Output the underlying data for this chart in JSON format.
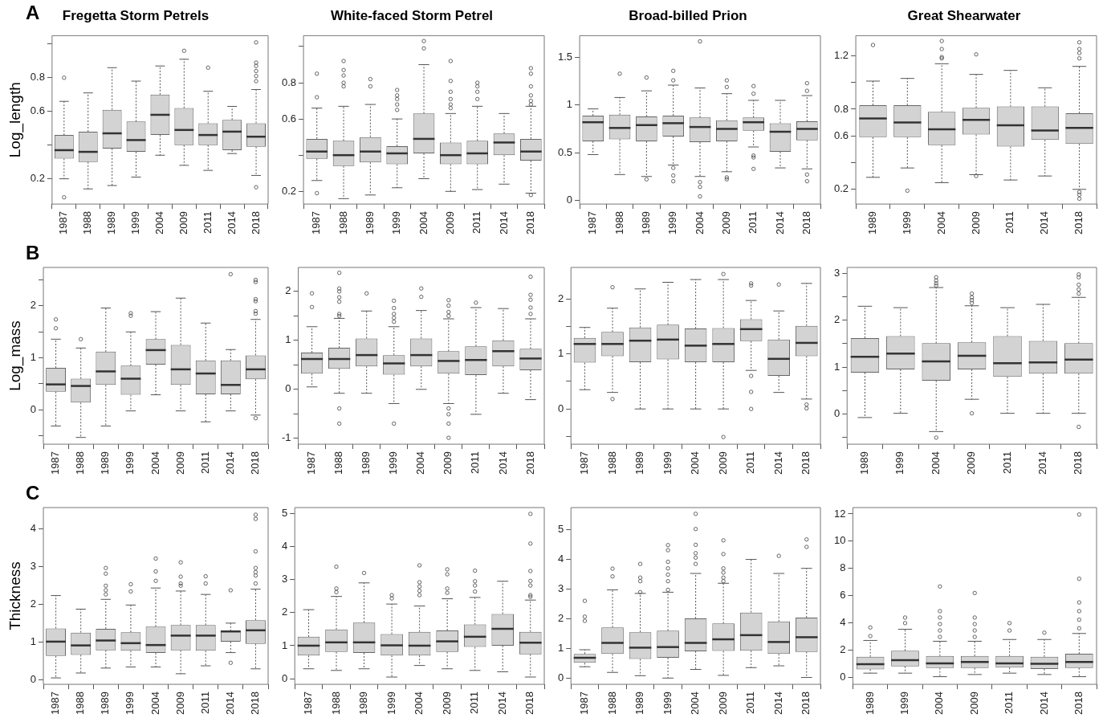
{
  "chart_data": [
    {
      "type": "box",
      "title": "Fregetta Storm Petrels",
      "ylabel": "Log_length",
      "annotations": [
        "A"
      ],
      "grid": false,
      "ylim": [
        0.05,
        1.05
      ],
      "yticks": [
        0.2,
        {
          "value": 0.4,
          "label": null
        },
        0.6,
        0.8,
        {
          "value": 1.0,
          "label": null
        }
      ],
      "categories": [
        "1987",
        "1988",
        "1989",
        "1999",
        "2004",
        "2009",
        "2011",
        "2014",
        "2018"
      ],
      "boxes": [
        {
          "low": 0.2,
          "q1": 0.32,
          "median": 0.37,
          "q3": 0.46,
          "high": 0.66,
          "outliers": [
            0.8,
            0.09
          ]
        },
        {
          "low": 0.14,
          "q1": 0.3,
          "median": 0.36,
          "q3": 0.48,
          "high": 0.71
        },
        {
          "low": 0.16,
          "q1": 0.38,
          "median": 0.47,
          "q3": 0.61,
          "high": 0.86
        },
        {
          "low": 0.21,
          "q1": 0.36,
          "median": 0.43,
          "q3": 0.54,
          "high": 0.78
        },
        {
          "low": 0.34,
          "q1": 0.46,
          "median": 0.58,
          "q3": 0.7,
          "high": 0.87
        },
        {
          "low": 0.28,
          "q1": 0.4,
          "median": 0.49,
          "q3": 0.62,
          "high": 0.91,
          "outliers": [
            0.96
          ]
        },
        {
          "low": 0.25,
          "q1": 0.4,
          "median": 0.46,
          "q3": 0.53,
          "high": 0.72,
          "outliers": [
            0.86
          ]
        },
        {
          "low": 0.35,
          "q1": 0.37,
          "median": 0.48,
          "q3": 0.55,
          "high": 0.63
        },
        {
          "low": 0.22,
          "q1": 0.39,
          "median": 0.45,
          "q3": 0.53,
          "high": 0.73,
          "outliers": [
            1.01,
            0.89,
            0.87,
            0.84,
            0.81,
            0.78,
            0.15
          ]
        }
      ]
    },
    {
      "type": "box",
      "title": "White-faced Storm Petrel",
      "grid": false,
      "ylim": [
        0.13,
        1.06
      ],
      "yticks": [
        0.2,
        {
          "value": 0.4,
          "label": null
        },
        0.6,
        0.8,
        {
          "value": 1.0,
          "label": null
        }
      ],
      "categories": [
        "1987",
        "1988",
        "1989",
        "1999",
        "2004",
        "2009",
        "2011",
        "2014",
        "2018"
      ],
      "boxes": [
        {
          "low": 0.26,
          "q1": 0.38,
          "median": 0.42,
          "q3": 0.49,
          "high": 0.66,
          "outliers": [
            0.85,
            0.72,
            0.19
          ]
        },
        {
          "low": 0.16,
          "q1": 0.34,
          "median": 0.4,
          "q3": 0.48,
          "high": 0.67,
          "outliers": [
            0.92,
            0.87,
            0.84,
            0.8,
            0.78
          ]
        },
        {
          "low": 0.18,
          "q1": 0.36,
          "median": 0.42,
          "q3": 0.5,
          "high": 0.68,
          "outliers": [
            0.82,
            0.78
          ]
        },
        {
          "low": 0.22,
          "q1": 0.35,
          "median": 0.41,
          "q3": 0.45,
          "high": 0.6,
          "outliers": [
            0.76,
            0.73,
            0.71,
            0.68,
            0.65
          ]
        },
        {
          "low": 0.27,
          "q1": 0.41,
          "median": 0.49,
          "q3": 0.63,
          "high": 0.9,
          "outliers": [
            1.03,
            0.99
          ]
        },
        {
          "low": 0.2,
          "q1": 0.35,
          "median": 0.4,
          "q3": 0.47,
          "high": 0.63,
          "outliers": [
            0.92,
            0.81,
            0.75,
            0.71,
            0.68,
            0.66
          ]
        },
        {
          "low": 0.21,
          "q1": 0.35,
          "median": 0.41,
          "q3": 0.48,
          "high": 0.67,
          "outliers": [
            0.8,
            0.78,
            0.75,
            0.71
          ]
        },
        {
          "low": 0.24,
          "q1": 0.4,
          "median": 0.47,
          "q3": 0.52,
          "high": 0.63
        },
        {
          "low": 0.19,
          "q1": 0.37,
          "median": 0.42,
          "q3": 0.49,
          "high": 0.67,
          "outliers": [
            0.88,
            0.85,
            0.78,
            0.73,
            0.7,
            0.68,
            0.18
          ]
        }
      ]
    },
    {
      "type": "box",
      "title": "Broad-billed Prion",
      "grid": false,
      "ylim": [
        -0.04,
        1.73
      ],
      "yticks": [
        0,
        0.5,
        1,
        1.5
      ],
      "categories": [
        "1987",
        "1988",
        "1989",
        "1999",
        "2004",
        "2009",
        "2011",
        "2014",
        "2018"
      ],
      "boxes": [
        {
          "low": 0.48,
          "q1": 0.62,
          "median": 0.82,
          "q3": 0.89,
          "high": 0.96
        },
        {
          "low": 0.27,
          "q1": 0.64,
          "median": 0.76,
          "q3": 0.9,
          "high": 1.08,
          "outliers": [
            1.33
          ]
        },
        {
          "low": 0.25,
          "q1": 0.62,
          "median": 0.79,
          "q3": 0.88,
          "high": 1.15,
          "outliers": [
            1.29,
            0.22
          ]
        },
        {
          "low": 0.37,
          "q1": 0.67,
          "median": 0.81,
          "q3": 0.89,
          "high": 1.21,
          "outliers": [
            1.36,
            1.26,
            0.34,
            0.26,
            0.2
          ]
        },
        {
          "low": 0.25,
          "q1": 0.61,
          "median": 0.77,
          "q3": 0.87,
          "high": 1.18,
          "outliers": [
            1.67,
            0.19,
            0.14,
            0.04
          ]
        },
        {
          "low": 0.3,
          "q1": 0.62,
          "median": 0.75,
          "q3": 0.84,
          "high": 1.12,
          "outliers": [
            1.26,
            1.19,
            0.24,
            0.22
          ]
        },
        {
          "low": 0.56,
          "q1": 0.73,
          "median": 0.82,
          "q3": 0.87,
          "high": 1.05,
          "outliers": [
            1.2,
            1.12,
            0.47,
            0.45,
            0.33
          ]
        },
        {
          "low": 0.34,
          "q1": 0.51,
          "median": 0.72,
          "q3": 0.81,
          "high": 1.05
        },
        {
          "low": 0.33,
          "q1": 0.63,
          "median": 0.75,
          "q3": 0.83,
          "high": 1.1,
          "outliers": [
            1.23,
            1.15,
            0.27,
            0.2
          ]
        }
      ]
    },
    {
      "type": "box",
      "title": "Great Shearwater",
      "grid": false,
      "ylim": [
        0.09,
        1.35
      ],
      "yticks": [
        0.2,
        {
          "value": 0.4,
          "label": null
        },
        0.6,
        0.8,
        {
          "value": 1.0,
          "label": null
        },
        1.2
      ],
      "categories": [
        "1989",
        "1999",
        "2004",
        "2009",
        "2011",
        "2014",
        "2018"
      ],
      "boxes": [
        {
          "low": 0.29,
          "q1": 0.59,
          "median": 0.73,
          "q3": 0.83,
          "high": 1.01,
          "outliers": [
            1.28
          ]
        },
        {
          "low": 0.36,
          "q1": 0.59,
          "median": 0.7,
          "q3": 0.83,
          "high": 1.03,
          "outliers": [
            0.19
          ]
        },
        {
          "low": 0.25,
          "q1": 0.53,
          "median": 0.65,
          "q3": 0.78,
          "high": 1.14,
          "outliers": [
            1.31,
            1.25,
            1.19,
            1.18
          ]
        },
        {
          "low": 0.31,
          "q1": 0.61,
          "median": 0.72,
          "q3": 0.81,
          "high": 1.06,
          "outliers": [
            1.21,
            0.3
          ]
        },
        {
          "low": 0.27,
          "q1": 0.52,
          "median": 0.68,
          "q3": 0.82,
          "high": 1.09
        },
        {
          "low": 0.3,
          "q1": 0.57,
          "median": 0.64,
          "q3": 0.82,
          "high": 0.96
        },
        {
          "low": 0.2,
          "q1": 0.54,
          "median": 0.66,
          "q3": 0.77,
          "high": 1.12,
          "outliers": [
            1.3,
            1.25,
            1.22,
            1.18,
            0.18,
            0.16,
            0.13
          ]
        }
      ]
    },
    {
      "type": "box",
      "ylabel": "Log_mass",
      "annotations": [
        "B"
      ],
      "grid": false,
      "ylim": [
        -0.66,
        2.74
      ],
      "yticks": [
        {
          "value": -0.5,
          "label": null
        },
        0,
        {
          "value": 0.5,
          "label": null
        },
        1,
        {
          "value": 1.5,
          "label": null
        },
        2,
        {
          "value": 2.5,
          "label": null
        }
      ],
      "categories": [
        "1987",
        "1988",
        "1989",
        "1999",
        "2004",
        "2009",
        "2011",
        "2014",
        "2018"
      ],
      "boxes": [
        {
          "low": -0.31,
          "q1": 0.35,
          "median": 0.49,
          "q3": 0.81,
          "high": 1.36,
          "outliers": [
            1.74,
            1.57
          ]
        },
        {
          "low": -0.53,
          "q1": 0.14,
          "median": 0.46,
          "q3": 0.6,
          "high": 1.19,
          "outliers": [
            1.36
          ]
        },
        {
          "low": -0.31,
          "q1": 0.48,
          "median": 0.74,
          "q3": 1.12,
          "high": 1.96
        },
        {
          "low": -0.02,
          "q1": 0.29,
          "median": 0.6,
          "q3": 0.85,
          "high": 1.5,
          "outliers": [
            1.86,
            1.81
          ]
        },
        {
          "low": 0.29,
          "q1": 0.87,
          "median": 1.15,
          "q3": 1.36,
          "high": 1.89
        },
        {
          "low": -0.02,
          "q1": 0.48,
          "median": 0.78,
          "q3": 1.25,
          "high": 2.15
        },
        {
          "low": -0.23,
          "q1": 0.3,
          "median": 0.7,
          "q3": 0.95,
          "high": 1.67
        },
        {
          "low": -0.02,
          "q1": 0.3,
          "median": 0.48,
          "q3": 0.95,
          "high": 1.16,
          "outliers": [
            2.61
          ]
        },
        {
          "low": -0.1,
          "q1": 0.59,
          "median": 0.78,
          "q3": 1.05,
          "high": 1.74,
          "outliers": [
            2.5,
            2.46,
            2.13,
            2.09,
            1.9,
            1.85,
            -0.16
          ]
        }
      ]
    },
    {
      "type": "box",
      "grid": false,
      "ylim": [
        -1.12,
        2.49
      ],
      "yticks": [
        -1,
        {
          "value": -0.5,
          "label": null
        },
        0,
        {
          "value": 0.5,
          "label": null
        },
        1,
        {
          "value": 1.5,
          "label": null
        },
        2
      ],
      "categories": [
        "1987",
        "1988",
        "1989",
        "1999",
        "2004",
        "2009",
        "2011",
        "2014",
        "2018"
      ],
      "boxes": [
        {
          "low": 0.05,
          "q1": 0.32,
          "median": 0.62,
          "q3": 0.75,
          "high": 1.28,
          "outliers": [
            1.96,
            1.68
          ]
        },
        {
          "low": -0.08,
          "q1": 0.42,
          "median": 0.62,
          "q3": 0.85,
          "high": 1.45,
          "outliers": [
            2.38,
            2.06,
            2.0,
            1.88,
            1.79,
            1.54,
            1.5,
            -0.39,
            -0.7
          ]
        },
        {
          "low": -0.08,
          "q1": 0.47,
          "median": 0.7,
          "q3": 1.04,
          "high": 1.6,
          "outliers": [
            1.96
          ]
        },
        {
          "low": -0.29,
          "q1": 0.3,
          "median": 0.53,
          "q3": 0.7,
          "high": 1.28,
          "outliers": [
            1.81,
            1.66,
            1.54,
            1.46,
            1.38,
            -0.7
          ]
        },
        {
          "low": 0,
          "q1": 0.47,
          "median": 0.7,
          "q3": 1.04,
          "high": 1.61,
          "outliers": [
            2.06,
            1.89
          ]
        },
        {
          "low": -0.29,
          "q1": 0.32,
          "median": 0.58,
          "q3": 0.78,
          "high": 1.44,
          "outliers": [
            1.82,
            1.71,
            1.58,
            1.5,
            -0.39,
            -0.51,
            -0.7,
            -0.99
          ]
        },
        {
          "low": -0.51,
          "q1": 0.29,
          "median": 0.6,
          "q3": 0.88,
          "high": 1.67,
          "outliers": [
            1.77
          ]
        },
        {
          "low": -0.08,
          "q1": 0.47,
          "median": 0.78,
          "q3": 1.0,
          "high": 1.65
        },
        {
          "low": -0.21,
          "q1": 0.39,
          "median": 0.63,
          "q3": 0.83,
          "high": 1.44,
          "outliers": [
            2.3,
            1.93,
            1.83,
            1.67,
            1.54
          ]
        }
      ]
    },
    {
      "type": "box",
      "grid": false,
      "ylim": [
        -0.64,
        2.57
      ],
      "yticks": [
        {
          "value": -0.5,
          "label": null
        },
        0,
        {
          "value": 0.5,
          "label": null
        },
        1,
        {
          "value": 1.5,
          "label": null
        },
        2
      ],
      "categories": [
        "1987",
        "1988",
        "1989",
        "1999",
        "2004",
        "2009",
        "2011",
        "2014",
        "2018"
      ],
      "boxes": [
        {
          "low": 0.35,
          "q1": 0.84,
          "median": 1.18,
          "q3": 1.29,
          "high": 1.48
        },
        {
          "low": 0.3,
          "q1": 0.96,
          "median": 1.18,
          "q3": 1.4,
          "high": 1.83,
          "outliers": [
            2.21,
            0.18
          ]
        },
        {
          "low": 0,
          "q1": 0.85,
          "median": 1.24,
          "q3": 1.48,
          "high": 2.18
        },
        {
          "low": 0,
          "q1": 0.9,
          "median": 1.26,
          "q3": 1.53,
          "high": 2.3
        },
        {
          "low": 0,
          "q1": 0.85,
          "median": 1.15,
          "q3": 1.46,
          "high": 2.35
        },
        {
          "low": 0,
          "q1": 0.85,
          "median": 1.18,
          "q3": 1.47,
          "high": 2.35,
          "outliers": [
            2.45,
            -0.51
          ]
        },
        {
          "low": 0.7,
          "q1": 1.23,
          "median": 1.45,
          "q3": 1.63,
          "high": 1.97,
          "outliers": [
            2.28,
            2.24,
            0.6,
            0.31,
            0
          ]
        },
        {
          "low": 0.3,
          "q1": 0.6,
          "median": 0.91,
          "q3": 1.26,
          "high": 1.78,
          "outliers": [
            2.26
          ]
        },
        {
          "low": 0.18,
          "q1": 0.96,
          "median": 1.2,
          "q3": 1.51,
          "high": 2.28,
          "outliers": [
            0.08,
            0.01
          ]
        }
      ]
    },
    {
      "type": "box",
      "grid": false,
      "ylim": [
        -0.65,
        3.13
      ],
      "yticks": [
        {
          "value": -0.5,
          "label": null
        },
        0,
        {
          "value": 0.5,
          "label": null
        },
        1,
        {
          "value": 1.5,
          "label": null
        },
        2,
        {
          "value": 2.5,
          "label": null
        },
        3
      ],
      "categories": [
        "1989",
        "1999",
        "2004",
        "2009",
        "2011",
        "2014",
        "2018"
      ],
      "boxes": [
        {
          "low": -0.08,
          "q1": 0.88,
          "median": 1.22,
          "q3": 1.62,
          "high": 2.3
        },
        {
          "low": 0.01,
          "q1": 0.95,
          "median": 1.29,
          "q3": 1.66,
          "high": 2.27
        },
        {
          "low": -0.38,
          "q1": 0.71,
          "median": 1.12,
          "q3": 1.51,
          "high": 2.7,
          "outliers": [
            2.92,
            2.85,
            2.79,
            2.74,
            -0.51
          ]
        },
        {
          "low": 0.31,
          "q1": 0.95,
          "median": 1.24,
          "q3": 1.53,
          "high": 2.31,
          "outliers": [
            2.57,
            2.49,
            2.43,
            2.37,
            0.01
          ]
        },
        {
          "low": 0.01,
          "q1": 0.79,
          "median": 1.08,
          "q3": 1.66,
          "high": 2.27
        },
        {
          "low": 0.01,
          "q1": 0.86,
          "median": 1.1,
          "q3": 1.56,
          "high": 2.34
        },
        {
          "low": 0.01,
          "q1": 0.86,
          "median": 1.16,
          "q3": 1.51,
          "high": 2.49,
          "outliers": [
            2.98,
            2.92,
            2.76,
            2.66,
            2.57,
            -0.28
          ]
        }
      ]
    },
    {
      "type": "box",
      "ylabel": "Thickness",
      "annotations": [
        "C"
      ],
      "grid": false,
      "ylim": [
        -0.11,
        4.57
      ],
      "yticks": [
        0,
        1,
        2,
        3,
        4
      ],
      "categories": [
        "1987",
        "1988",
        "1989",
        "1999",
        "2004",
        "2009",
        "2011",
        "2014",
        "2018"
      ],
      "boxes": [
        {
          "low": 0.06,
          "q1": 0.64,
          "median": 1.02,
          "q3": 1.37,
          "high": 2.24
        },
        {
          "low": 0.19,
          "q1": 0.67,
          "median": 0.92,
          "q3": 1.26,
          "high": 1.88
        },
        {
          "low": 0.32,
          "q1": 0.79,
          "median": 1.05,
          "q3": 1.36,
          "high": 2.14,
          "outliers": [
            2.97,
            2.82,
            2.5,
            2.38,
            2.27
          ]
        },
        {
          "low": 0.35,
          "q1": 0.78,
          "median": 0.98,
          "q3": 1.27,
          "high": 1.99,
          "outliers": [
            2.54,
            2.35
          ]
        },
        {
          "low": 0.35,
          "q1": 0.72,
          "median": 0.93,
          "q3": 1.42,
          "high": 2.44,
          "outliers": [
            3.22,
            2.88,
            2.63
          ]
        },
        {
          "low": 0.17,
          "q1": 0.79,
          "median": 1.18,
          "q3": 1.46,
          "high": 2.36,
          "outliers": [
            3.12,
            2.74,
            2.56,
            2.5
          ]
        },
        {
          "low": 0.38,
          "q1": 0.78,
          "median": 1.18,
          "q3": 1.46,
          "high": 2.27,
          "outliers": [
            2.75,
            2.56
          ]
        },
        {
          "low": 0.73,
          "q1": 1.02,
          "median": 1.29,
          "q3": 1.3,
          "high": 1.51,
          "outliers": [
            2.38,
            0.46
          ]
        },
        {
          "low": 0.3,
          "q1": 0.96,
          "median": 1.32,
          "q3": 1.59,
          "high": 2.41,
          "outliers": [
            4.38,
            4.27,
            3.41,
            2.97,
            2.86,
            2.77,
            2.56
          ]
        }
      ]
    },
    {
      "type": "box",
      "grid": false,
      "ylim": [
        -0.17,
        5.18
      ],
      "yticks": [
        0,
        1,
        2,
        3,
        4,
        5
      ],
      "categories": [
        "1987",
        "1988",
        "1989",
        "1999",
        "2004",
        "2009",
        "2011",
        "2014",
        "2018"
      ],
      "boxes": [
        {
          "low": 0.3,
          "q1": 0.7,
          "median": 1.0,
          "q3": 1.27,
          "high": 2.09
        },
        {
          "low": 0.25,
          "q1": 0.81,
          "median": 1.1,
          "q3": 1.49,
          "high": 2.49,
          "outliers": [
            3.39,
            2.73,
            2.62
          ]
        },
        {
          "low": 0.3,
          "q1": 0.78,
          "median": 1.1,
          "q3": 1.7,
          "high": 2.9,
          "outliers": [
            3.2
          ]
        },
        {
          "low": 0.05,
          "q1": 0.7,
          "median": 1.01,
          "q3": 1.35,
          "high": 2.26,
          "outliers": [
            2.53,
            2.43
          ]
        },
        {
          "low": 0.4,
          "q1": 0.7,
          "median": 1.0,
          "q3": 1.42,
          "high": 2.2,
          "outliers": [
            3.43,
            2.92,
            2.79,
            2.66,
            2.53
          ]
        },
        {
          "low": 0.3,
          "q1": 0.81,
          "median": 1.13,
          "q3": 1.46,
          "high": 2.42,
          "outliers": [
            3.31,
            3.16,
            2.73,
            2.6
          ]
        },
        {
          "low": 0.25,
          "q1": 0.96,
          "median": 1.27,
          "q3": 1.64,
          "high": 2.46,
          "outliers": [
            3.27,
            2.95,
            2.82,
            2.64
          ]
        },
        {
          "low": 0.21,
          "q1": 1.0,
          "median": 1.51,
          "q3": 1.96,
          "high": 2.95
        },
        {
          "low": 0.05,
          "q1": 0.74,
          "median": 1.09,
          "q3": 1.42,
          "high": 2.38,
          "outliers": [
            4.99,
            4.09,
            3.26,
            2.96,
            2.82,
            2.53,
            2.48
          ]
        }
      ]
    },
    {
      "type": "box",
      "grid": false,
      "ylim": [
        -0.2,
        5.73
      ],
      "yticks": [
        0,
        1,
        2,
        3,
        4,
        5
      ],
      "categories": [
        "1987",
        "1988",
        "1989",
        "1999",
        "2004",
        "2009",
        "2011",
        "2014",
        "2018"
      ],
      "boxes": [
        {
          "low": 0.39,
          "q1": 0.52,
          "median": 0.69,
          "q3": 0.82,
          "high": 0.96,
          "outliers": [
            2.6,
            2.07,
            1.93
          ]
        },
        {
          "low": 0.2,
          "q1": 0.82,
          "median": 1.19,
          "q3": 1.71,
          "high": 2.97,
          "outliers": [
            3.68,
            3.42
          ]
        },
        {
          "low": 0.09,
          "q1": 0.65,
          "median": 1.03,
          "q3": 1.55,
          "high": 2.85,
          "outliers": [
            3.84,
            3.38,
            3.26,
            2.89
          ]
        },
        {
          "low": 0.01,
          "q1": 0.69,
          "median": 1.05,
          "q3": 1.6,
          "high": 2.89,
          "outliers": [
            4.47,
            4.3,
            3.91,
            3.69,
            3.48,
            3.26,
            2.97
          ]
        },
        {
          "low": 0.3,
          "q1": 0.91,
          "median": 1.19,
          "q3": 2.01,
          "high": 3.52,
          "outliers": [
            5.52,
            5.01,
            4.48,
            4.2,
            4.05,
            3.84
          ]
        },
        {
          "low": 0.1,
          "q1": 0.92,
          "median": 1.31,
          "q3": 1.84,
          "high": 3.19,
          "outliers": [
            4.63,
            4.17,
            3.69,
            3.55,
            3.38,
            3.26
          ]
        },
        {
          "low": 0.36,
          "q1": 0.93,
          "median": 1.45,
          "q3": 2.21,
          "high": 3.99
        },
        {
          "low": 0.42,
          "q1": 0.82,
          "median": 1.22,
          "q3": 1.91,
          "high": 3.52,
          "outliers": [
            4.11
          ]
        },
        {
          "low": 0.03,
          "q1": 0.89,
          "median": 1.38,
          "q3": 2.04,
          "high": 3.69,
          "outliers": [
            4.66,
            4.41
          ]
        }
      ]
    },
    {
      "type": "box",
      "grid": false,
      "ylim": [
        -0.5,
        12.47
      ],
      "yticks": [
        0,
        2,
        4,
        6,
        8,
        10,
        12
      ],
      "categories": [
        "1989",
        "1999",
        "2004",
        "2009",
        "2011",
        "2014",
        "2018"
      ],
      "boxes": [
        {
          "low": 0.32,
          "q1": 0.6,
          "median": 0.98,
          "q3": 1.52,
          "high": 2.72,
          "outliers": [
            3.67,
            3.04
          ]
        },
        {
          "low": 0.32,
          "q1": 0.82,
          "median": 1.27,
          "q3": 1.96,
          "high": 3.54,
          "outliers": [
            4.4,
            3.99
          ]
        },
        {
          "low": 0.06,
          "q1": 0.7,
          "median": 1.04,
          "q3": 1.58,
          "high": 2.66,
          "outliers": [
            6.68,
            4.87,
            4.4,
            3.92,
            3.45,
            2.98
          ]
        },
        {
          "low": 0.22,
          "q1": 0.7,
          "median": 1.14,
          "q3": 1.58,
          "high": 2.66,
          "outliers": [
            6.2,
            4.4,
            3.92,
            3.45,
            2.98
          ]
        },
        {
          "low": 0.32,
          "q1": 0.73,
          "median": 1.04,
          "q3": 1.58,
          "high": 2.79,
          "outliers": [
            3.99,
            3.45
          ]
        },
        {
          "low": 0.22,
          "q1": 0.63,
          "median": 1.01,
          "q3": 1.52,
          "high": 2.79,
          "outliers": [
            3.29
          ]
        },
        {
          "low": 0.06,
          "q1": 0.7,
          "median": 1.14,
          "q3": 1.74,
          "high": 3.23,
          "outliers": [
            11.96,
            7.25,
            5.51,
            4.87,
            4.24,
            3.61
          ]
        }
      ]
    }
  ]
}
